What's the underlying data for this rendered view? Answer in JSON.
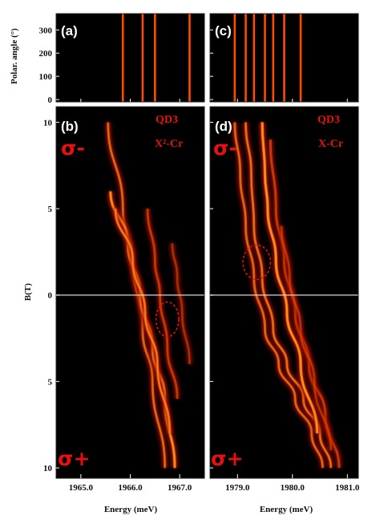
{
  "colors": {
    "background": "#000000",
    "trace_dim": "#9a1400",
    "trace_mid": "#ff4a00",
    "trace_hot": "#ffe040",
    "annotation": "#e81010",
    "zero_line": "#d8d8d8"
  },
  "ylabel_top": "Polar. angle (°)",
  "ylabel_bottom": "B(T)",
  "xlabel": "Energy (meV)",
  "chart_data": [
    {
      "panel": "(a)",
      "type": "heatmap",
      "xlim": [
        1964.5,
        1967.5
      ],
      "ylim": [
        -10,
        370
      ],
      "yticks": [
        "0",
        "100",
        "200",
        "300"
      ],
      "yticks_values": [
        0,
        100,
        200,
        300
      ],
      "xticks_values": [
        1965.0,
        1966.0,
        1967.0
      ],
      "lines_x": [
        1965.85,
        1966.25,
        1966.5,
        1967.2
      ]
    },
    {
      "panel": "(c)",
      "type": "heatmap",
      "xlim": [
        1978.5,
        1981.2
      ],
      "ylim": [
        -10,
        370
      ],
      "xticks_values": [
        1979.0,
        1980.0,
        1981.0
      ],
      "lines_x": [
        1978.95,
        1979.15,
        1979.3,
        1979.5,
        1979.65,
        1979.85,
        1980.15
      ]
    },
    {
      "panel": "(b)",
      "type": "heatmap",
      "annotations": [
        "QD3",
        "X²-Cr"
      ],
      "sigma_top": "σ-",
      "sigma_bottom": "σ+",
      "xlim": [
        1964.5,
        1967.5
      ],
      "ylim": [
        -10.6,
        10.9
      ],
      "xticks": [
        "1965.0",
        "1966.0",
        "1967.0"
      ],
      "xticks_values": [
        1965.0,
        1966.0,
        1967.0
      ],
      "yticks": [
        "10",
        "5",
        "0",
        "5",
        "10"
      ],
      "yticks_values": [
        10,
        5,
        0,
        -5,
        -10
      ],
      "lines": [
        {
          "x": [
            1965.55,
            1965.85,
            1966.05,
            1966.25,
            1966.45,
            1966.7
          ],
          "B": [
            10,
            5,
            2,
            -2,
            -5,
            -10
          ],
          "intensity": 0.55
        },
        {
          "x": [
            1965.6,
            1965.95,
            1966.2,
            1966.45,
            1966.7,
            1966.9
          ],
          "B": [
            6,
            3,
            0,
            -3,
            -6,
            -10
          ],
          "intensity": 0.9
        },
        {
          "x": [
            1965.7,
            1966.05,
            1966.3,
            1966.55,
            1966.8
          ],
          "B": [
            5,
            2,
            -1,
            -4,
            -8
          ],
          "intensity": 0.7
        },
        {
          "x": [
            1966.35,
            1966.5,
            1966.6,
            1966.75,
            1966.95
          ],
          "B": [
            5,
            2,
            0,
            -3,
            -6
          ],
          "intensity": 0.45
        },
        {
          "x": [
            1966.85,
            1966.95,
            1967.05,
            1967.2
          ],
          "B": [
            3,
            1,
            -1,
            -4
          ],
          "intensity": 0.25
        }
      ],
      "ellipse": {
        "x": 1966.75,
        "B": -1.4,
        "rx": 0.23,
        "rB": 1.0
      }
    },
    {
      "panel": "(d)",
      "type": "heatmap",
      "annotations": [
        "QD3",
        "X-Cr"
      ],
      "sigma_top": "σ-",
      "sigma_bottom": "σ+",
      "xlim": [
        1978.5,
        1981.2
      ],
      "ylim": [
        -10.6,
        10.9
      ],
      "xticks": [
        "1979.0",
        "1980.0",
        "1981.0"
      ],
      "xticks_values": [
        1979.0,
        1980.0,
        1981.0
      ],
      "lines": [
        {
          "x": [
            1978.95,
            1979.05,
            1979.15,
            1979.3,
            1979.5,
            1979.75,
            1980.05,
            1980.35,
            1980.55
          ],
          "B": [
            10,
            7,
            4,
            1,
            -2,
            -4,
            -6,
            -8,
            -10
          ],
          "intensity": 0.55
        },
        {
          "x": [
            1979.15,
            1979.25,
            1979.3,
            1979.45,
            1979.65,
            1979.9,
            1980.2,
            1980.5,
            1980.7
          ],
          "B": [
            10,
            7,
            4,
            1,
            -2,
            -4,
            -6,
            -8,
            -10
          ],
          "intensity": 0.6
        },
        {
          "x": [
            1979.45,
            1979.5,
            1979.55,
            1979.7,
            1979.9,
            1980.15,
            1980.45
          ],
          "B": [
            10,
            7,
            5,
            2,
            -1,
            -4,
            -8
          ],
          "intensity": 0.95
        },
        {
          "x": [
            1979.6,
            1979.7,
            1979.85,
            1980.05,
            1980.3,
            1980.6,
            1980.85
          ],
          "B": [
            9,
            5,
            2,
            -1,
            -4,
            -7,
            -10
          ],
          "intensity": 0.5
        },
        {
          "x": [
            1979.8,
            1979.95,
            1980.15,
            1980.4,
            1980.7
          ],
          "B": [
            4,
            1,
            -2,
            -5,
            -9
          ],
          "intensity": 0.3
        }
      ],
      "ellipse": {
        "x": 1979.35,
        "B": 1.9,
        "rx": 0.25,
        "rB": 1.0
      }
    }
  ]
}
